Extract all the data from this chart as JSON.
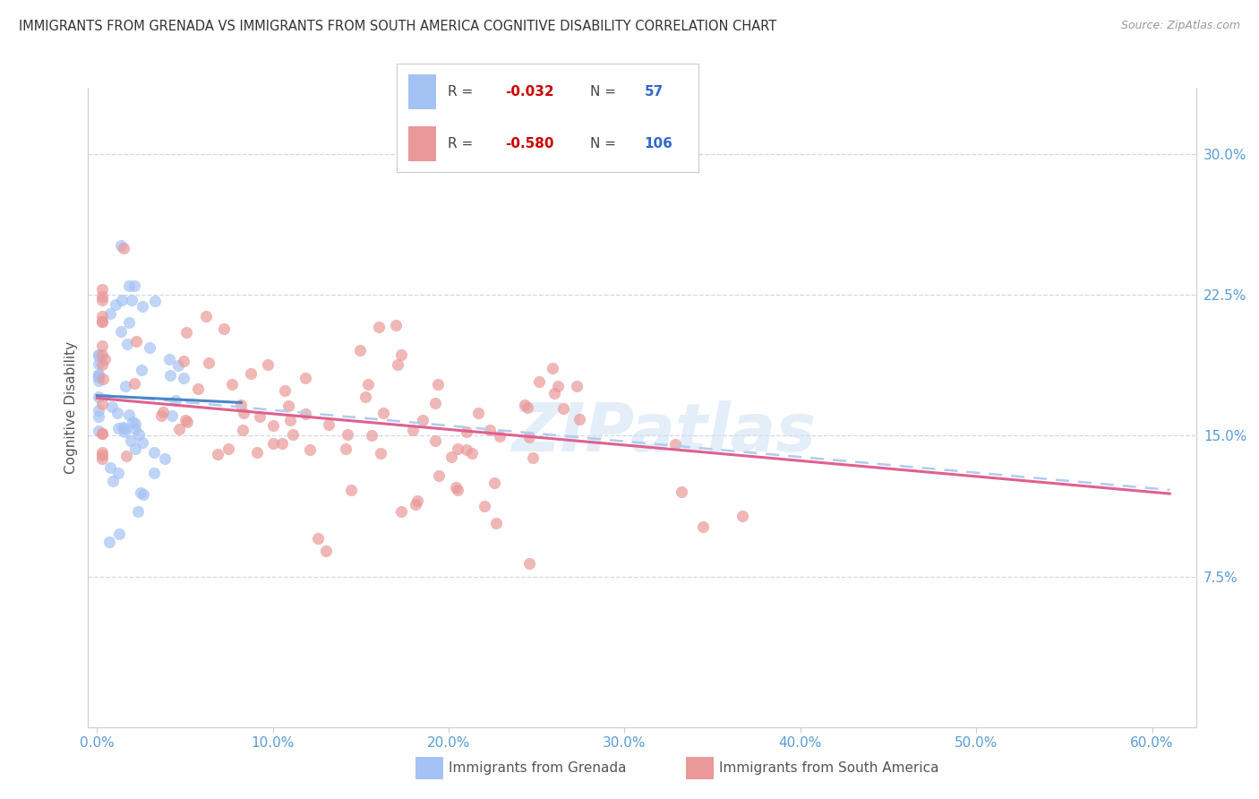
{
  "title": "IMMIGRANTS FROM GRENADA VS IMMIGRANTS FROM SOUTH AMERICA COGNITIVE DISABILITY CORRELATION CHART",
  "source": "Source: ZipAtlas.com",
  "ylabel": "Cognitive Disability",
  "x_tick_labels": [
    "0.0%",
    "10.0%",
    "20.0%",
    "30.0%",
    "40.0%",
    "50.0%",
    "60.0%"
  ],
  "y_tick_labels": [
    "",
    "7.5%",
    "15.0%",
    "22.5%",
    "30.0%"
  ],
  "grenada_R": -0.032,
  "grenada_N": 57,
  "south_america_R": -0.58,
  "south_america_N": 106,
  "grenada_color": "#a4c2f4",
  "south_america_color": "#ea9999",
  "grenada_line_color": "#4a86c8",
  "south_america_line_color": "#e06090",
  "dashed_line_color": "#b0ccee",
  "legend_label_1": "Immigrants from Grenada",
  "legend_label_2": "Immigrants from South America",
  "watermark": "ZIPatlas",
  "tick_color": "#5b9bd5",
  "grid_color": "#d0d8e8",
  "spine_color": "#cccccc"
}
